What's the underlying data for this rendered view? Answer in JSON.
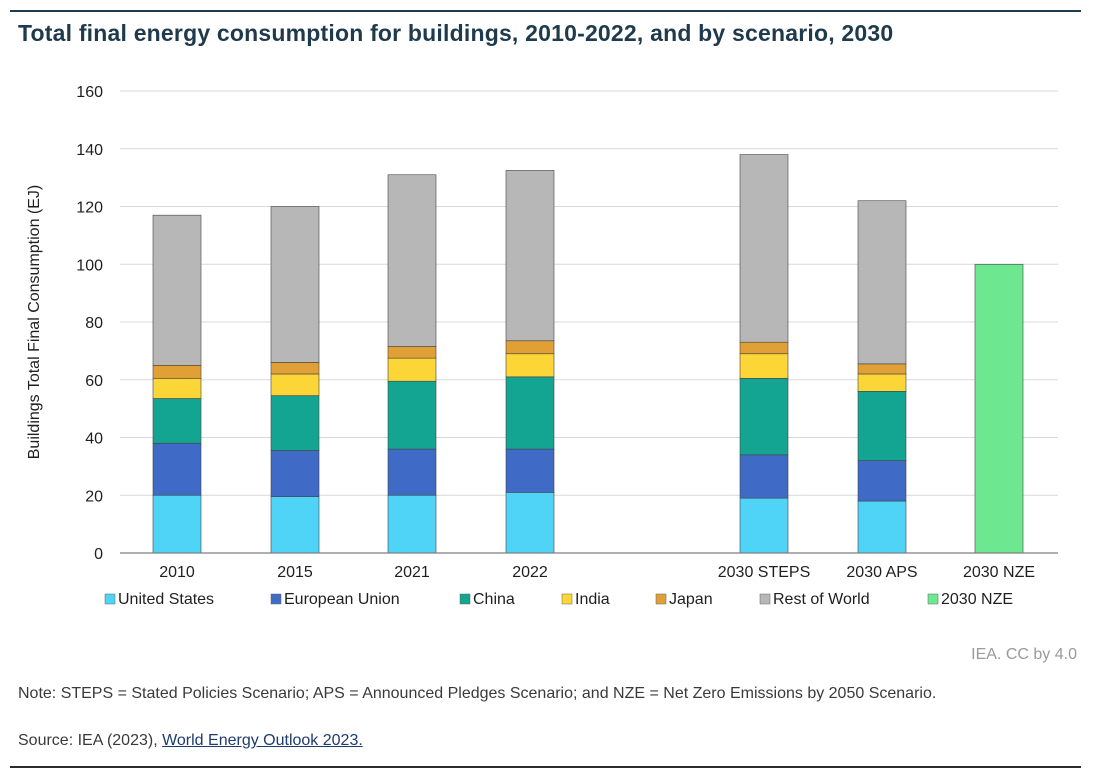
{
  "title": "Total final energy consumption for buildings, 2010-2022, and by scenario, 2030",
  "credit": "IEA. CC by 4.0",
  "note": "Note: STEPS = Stated Policies Scenario; APS = Announced Pledges Scenario; and NZE = Net Zero Emissions by 2050 Scenario.",
  "source": {
    "prefix": "Source: IEA (2023), ",
    "link_text": "World Energy Outlook 2023."
  },
  "chart_data": {
    "type": "bar",
    "stacked": true,
    "ylabel": "Buildings Total Final Consumption (EJ)",
    "ylim": [
      0,
      160
    ],
    "yticks": [
      0,
      20,
      40,
      60,
      80,
      100,
      120,
      140,
      160
    ],
    "grid": true,
    "legend_position": "bottom",
    "categories": [
      "2010",
      "2015",
      "2021",
      "2022",
      "2030 STEPS",
      "2030 APS",
      "2030 NZE"
    ],
    "series": [
      {
        "name": "United States",
        "color": "#4fd3f7",
        "values": [
          20,
          19.5,
          20,
          21,
          19,
          18,
          0
        ]
      },
      {
        "name": "European Union",
        "color": "#3f6ac6",
        "values": [
          18,
          16,
          16,
          15,
          15,
          14,
          0
        ]
      },
      {
        "name": "China",
        "color": "#13a591",
        "values": [
          15.5,
          19,
          23.5,
          25,
          26.5,
          24,
          0
        ]
      },
      {
        "name": "India",
        "color": "#fcd537",
        "values": [
          7,
          7.5,
          8,
          8,
          8.5,
          6,
          0
        ]
      },
      {
        "name": "Japan",
        "color": "#e0a035",
        "values": [
          4.5,
          4,
          4,
          4.5,
          4,
          3.5,
          0
        ]
      },
      {
        "name": "Rest of World",
        "color": "#b7b7b7",
        "values": [
          52,
          54,
          59.5,
          59,
          65,
          56.5,
          0
        ]
      },
      {
        "name": "2030 NZE",
        "color": "#6ee890",
        "values": [
          0,
          0,
          0,
          0,
          0,
          0,
          100
        ]
      }
    ]
  }
}
